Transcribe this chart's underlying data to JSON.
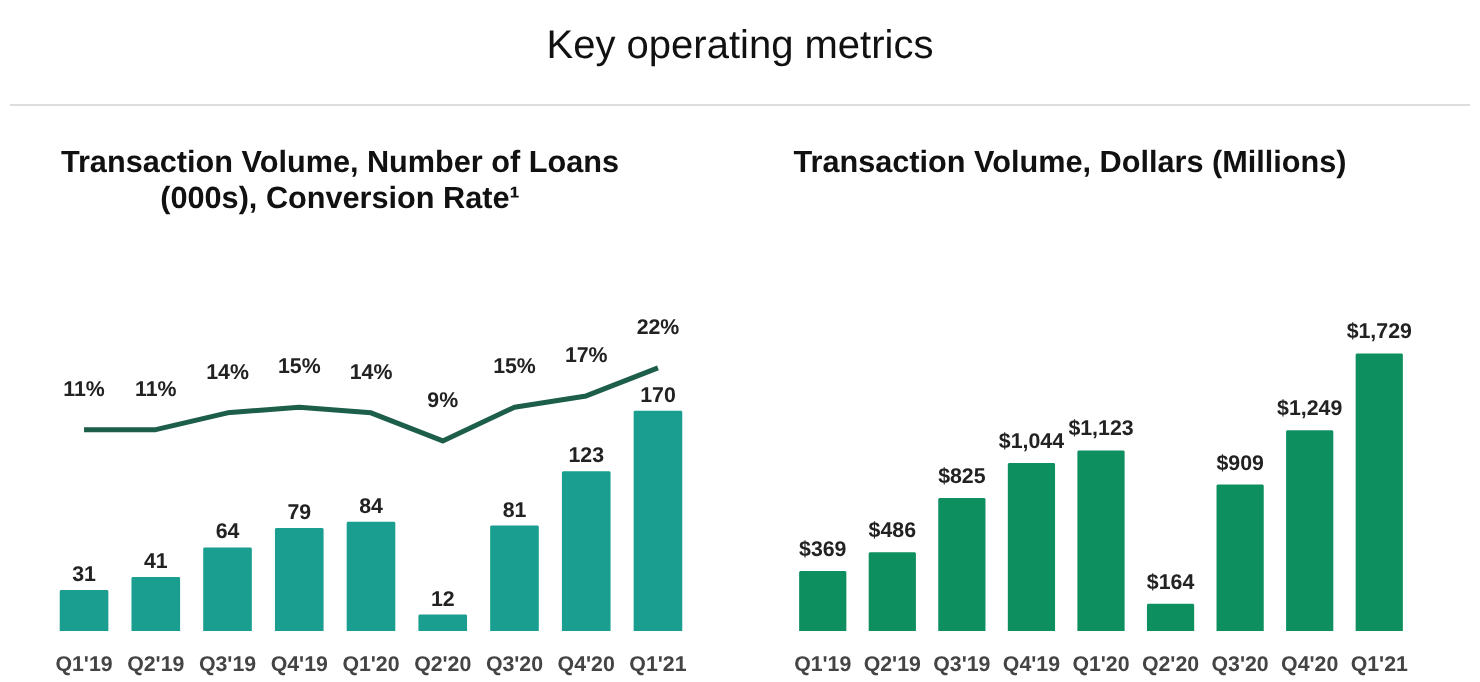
{
  "chart_data": [
    {
      "type": "bar",
      "title": "Transaction Volume, Number of Loans (000s), Conversion Rate¹",
      "annotations": [
        "Key operating metrics"
      ],
      "categories": [
        "Q1'19",
        "Q2'19",
        "Q3'19",
        "Q4'19",
        "Q1'20",
        "Q2'20",
        "Q3'20",
        "Q4'20",
        "Q1'21"
      ],
      "series": [
        {
          "color": "#1a9e8f",
          "values": [
            31,
            41,
            64,
            79,
            84,
            12,
            81,
            123,
            170
          ],
          "value_labels": [
            "31",
            "41",
            "64",
            "79",
            "84",
            "12",
            "81",
            "123",
            "170"
          ]
        },
        {
          "type": "line",
          "axis": "y2",
          "color": "#1d5e4a",
          "values": [
            11,
            11,
            14,
            15,
            14,
            9,
            15,
            17,
            22
          ],
          "value_labels": [
            "11%",
            "11%",
            "14%",
            "15%",
            "14%",
            "9%",
            "15%",
            "17%",
            "22%"
          ]
        }
      ],
      "grid": false,
      "tick_labels": "x"
    },
    {
      "type": "bar",
      "title": "Transaction Volume, Dollars (Millions)",
      "categories": [
        "Q1'19",
        "Q2'19",
        "Q3'19",
        "Q4'19",
        "Q1'20",
        "Q2'20",
        "Q3'20",
        "Q4'20",
        "Q1'21"
      ],
      "series": [
        {
          "color": "#0e8f60",
          "values": [
            369,
            486,
            825,
            1044,
            1123,
            164,
            909,
            1249,
            1729
          ],
          "value_labels": [
            "$369",
            "$486",
            "$825",
            "$1,044",
            "$1,123",
            "$164",
            "$909",
            "$1,249",
            "$1,729"
          ]
        }
      ],
      "grid": false,
      "tick_labels": "x"
    }
  ]
}
